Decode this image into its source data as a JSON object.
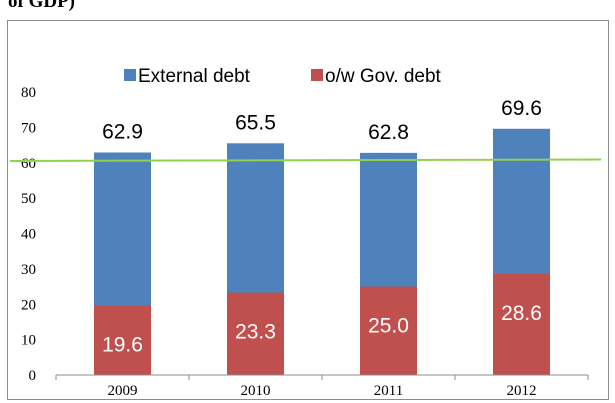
{
  "title_fragment": "of GDP)",
  "colors": {
    "external_debt": "#4f81bd",
    "gov_debt": "#c0504d",
    "threshold_line": "#92d050",
    "axis": "#8c8c8c",
    "text": "#000000",
    "data_label_light": "#ffffff"
  },
  "chart_data": {
    "type": "bar",
    "stacked_overlay": true,
    "categories": [
      "2009",
      "2010",
      "2011",
      "2012"
    ],
    "series": [
      {
        "name": "External debt",
        "values": [
          62.9,
          65.5,
          62.8,
          69.6
        ],
        "labels": [
          "62.9",
          "65.5",
          "62.8",
          "69.6"
        ]
      },
      {
        "name": "o/w Gov. debt",
        "values": [
          19.6,
          23.3,
          25.0,
          28.6
        ],
        "labels": [
          "19.6",
          "23.3",
          "25.0",
          "28.6"
        ]
      }
    ],
    "reference_line": {
      "value": 60.5
    },
    "ylim": [
      0,
      80
    ],
    "yticks": [
      0,
      10,
      20,
      30,
      40,
      50,
      60,
      70,
      80
    ],
    "ytick_labels": [
      "0",
      "10",
      "20",
      "30",
      "40",
      "50",
      "60",
      "70",
      "80"
    ],
    "grid": false,
    "legend_position": "top"
  }
}
